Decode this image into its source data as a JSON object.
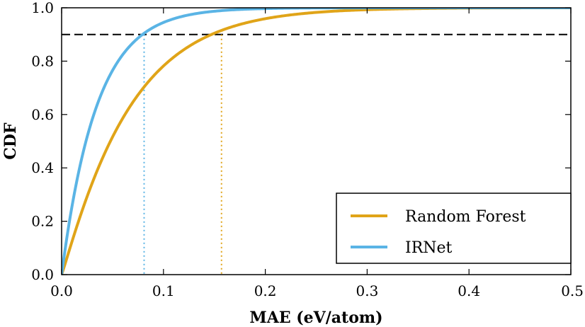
{
  "chart_data": {
    "type": "line",
    "title": "",
    "xlabel": "MAE (eV/atom)",
    "ylabel": "CDF",
    "xlim": [
      0.0,
      0.5
    ],
    "ylim": [
      0.0,
      1.0
    ],
    "xticks": [
      "0.0",
      "0.1",
      "0.2",
      "0.3",
      "0.4",
      "0.5"
    ],
    "yticks": [
      "0.0",
      "0.2",
      "0.4",
      "0.6",
      "0.8",
      "1.0"
    ],
    "grid": false,
    "legend_position": "bottom-right",
    "reference_line": {
      "y": 0.9,
      "style": "dashed",
      "color": "#000000"
    },
    "colors": {
      "random_forest": "#E0A418",
      "irnet": "#5AB4E5",
      "axis": "#000000"
    },
    "series": [
      {
        "name": "Random Forest",
        "color": "#E0A418",
        "scale": 0.0675,
        "shape": 1.07,
        "percentile_90_x": 0.157
      },
      {
        "name": "IRNet",
        "color": "#5AB4E5",
        "scale": 0.0345,
        "shape": 1.0,
        "percentile_90_x": 0.081
      }
    ],
    "annotations": [
      {
        "type": "vertical-dotted",
        "x": 0.081,
        "y_top": 0.9,
        "series": "IRNet",
        "color": "#5AB4E5"
      },
      {
        "type": "vertical-dotted",
        "x": 0.157,
        "y_top": 0.9,
        "series": "Random Forest",
        "color": "#E0A418"
      }
    ]
  }
}
